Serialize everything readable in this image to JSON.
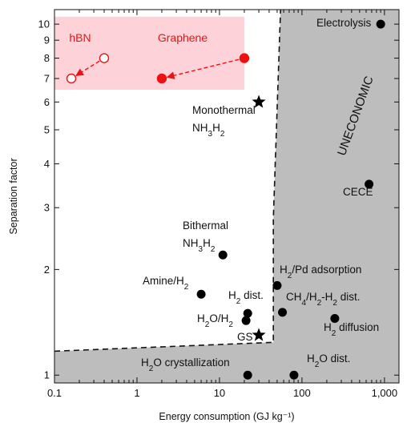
{
  "chart_data": {
    "type": "scatter",
    "title": "",
    "xlabel": "Energy consumption (GJ kg⁻¹)",
    "ylabel": "Separation factor",
    "xscale": "log",
    "yscale": "log",
    "xlim": [
      0.1,
      1500
    ],
    "ylim": [
      0.95,
      11
    ],
    "x_tick_labels": [
      {
        "value": 0.1,
        "label": "0.1"
      },
      {
        "value": 1,
        "label": "1"
      },
      {
        "value": 10,
        "label": "10"
      },
      {
        "value": 100,
        "label": "100"
      },
      {
        "value": 1000,
        "label": "1,000"
      }
    ],
    "y_tick_labels": [
      {
        "value": 1,
        "label": "1"
      },
      {
        "value": 2,
        "label": "2"
      },
      {
        "value": 3,
        "label": "3"
      },
      {
        "value": 4,
        "label": "4"
      },
      {
        "value": 5,
        "label": "5"
      },
      {
        "value": 6,
        "label": "6"
      },
      {
        "value": 7,
        "label": "7"
      },
      {
        "value": 8,
        "label": "8"
      },
      {
        "value": 9,
        "label": "9"
      },
      {
        "value": 10,
        "label": "10"
      }
    ],
    "grid": false,
    "region_label": "UNECONOMIC",
    "uneconomic_boundary": [
      {
        "x": 0.1,
        "y": 1.17
      },
      {
        "x": 45,
        "y": 1.24
      },
      {
        "x": 45,
        "y": 2.8
      },
      {
        "x": 55,
        "y": 11
      }
    ],
    "new_region": {
      "x_range": [
        0.1,
        20
      ],
      "y_range": [
        6.5,
        10.5
      ]
    },
    "points": [
      {
        "label": "Electrolysis",
        "x": 900,
        "y": 10,
        "marker": "circle"
      },
      {
        "label": "CECE",
        "x": 650,
        "y": 3.5,
        "marker": "circle"
      },
      {
        "label": "Monothermal NH3H2",
        "x": 30,
        "y": 6,
        "marker": "star"
      },
      {
        "label": "Bithermal NH3H2",
        "x": 11,
        "y": 2.2,
        "marker": "circle"
      },
      {
        "label": "Amine/H2",
        "x": 6,
        "y": 1.7,
        "marker": "circle"
      },
      {
        "label": "H2 dist.",
        "x": 22,
        "y": 1.5,
        "marker": "circle"
      },
      {
        "label": "H2O/H2",
        "x": 21,
        "y": 1.43,
        "marker": "circle"
      },
      {
        "label": "GS",
        "x": 30,
        "y": 1.3,
        "marker": "star"
      },
      {
        "label": "H2/Pd adsorption",
        "x": 50,
        "y": 1.8,
        "marker": "circle"
      },
      {
        "label": "CH4/H2-H2 dist.",
        "x": 58,
        "y": 1.51,
        "marker": "circle"
      },
      {
        "label": "H2 diffusion",
        "x": 250,
        "y": 1.45,
        "marker": "circle"
      },
      {
        "label": "H2O crystallization",
        "x": 22,
        "y": 1.0,
        "marker": "circle"
      },
      {
        "label": "H2O dist.",
        "x": 80,
        "y": 1.0,
        "marker": "circle"
      }
    ],
    "series": [
      {
        "name": "hBN",
        "color": "#ee1111",
        "marker": "open-circle",
        "from": {
          "x": 0.4,
          "y": 8
        },
        "to": {
          "x": 0.16,
          "y": 7
        }
      },
      {
        "name": "Graphene",
        "color": "#ee1111",
        "marker": "filled-circle",
        "from": {
          "x": 20,
          "y": 8
        },
        "to": {
          "x": 2,
          "y": 7
        }
      }
    ]
  }
}
